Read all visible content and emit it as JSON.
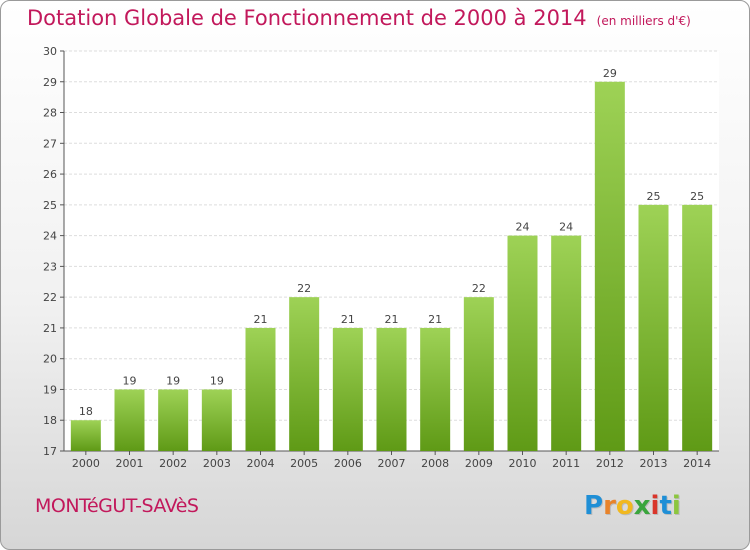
{
  "chart_data": {
    "type": "bar",
    "title": "Dotation Globale de Fonctionnement de 2000 à 2014",
    "subtitle": "(en milliers d'€)",
    "categories": [
      "2000",
      "2001",
      "2002",
      "2003",
      "2004",
      "2005",
      "2006",
      "2007",
      "2008",
      "2009",
      "2010",
      "2011",
      "2012",
      "2013",
      "2014"
    ],
    "values": [
      18,
      19,
      19,
      19,
      21,
      22,
      21,
      21,
      21,
      22,
      24,
      24,
      29,
      25,
      25
    ],
    "xlabel": "",
    "ylabel": "",
    "ylim": [
      17,
      30
    ],
    "yticks": [
      17,
      18,
      19,
      20,
      21,
      22,
      23,
      24,
      25,
      26,
      27,
      28,
      29,
      30
    ],
    "grid": true,
    "bar_color": "#7cb82f"
  },
  "commune": "MONTéGUT-SAVèS",
  "logo": {
    "letters": [
      "P",
      "r",
      "o",
      "x",
      "i",
      "t",
      "i"
    ],
    "colors": [
      "#1f8fd6",
      "#e8832a",
      "#f1b81f",
      "#3aa53d",
      "#d9352a",
      "#1f8fd6",
      "#8cc63f"
    ]
  }
}
